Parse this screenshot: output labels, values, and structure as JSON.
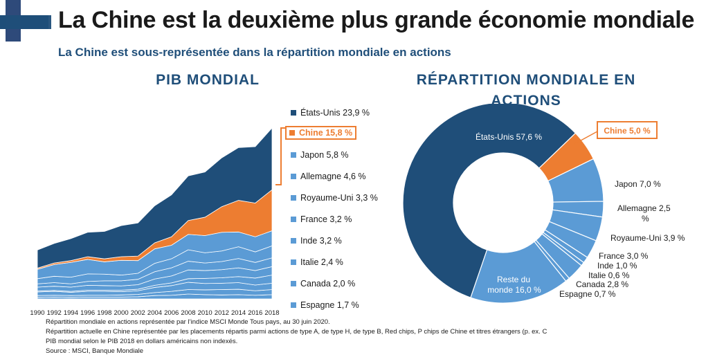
{
  "header": {
    "title": "La Chine est la deuxième plus grande économie mondiale",
    "subtitle": "La Chine est sous-représentée dans la répartition mondiale en actions"
  },
  "left_heading": "PIB MONDIAL",
  "right_heading_line1": "RÉPARTITION MONDIALE EN",
  "right_heading_line2": "ACTIONS",
  "colors": {
    "navy": "#1f4e79",
    "blue": "#2e75b6",
    "orange": "#ed7d31",
    "light_blue": "#5b9bd5",
    "title": "#1f4e79"
  },
  "chart_data": [
    {
      "type": "area",
      "stacked": true,
      "title": "PIB MONDIAL",
      "x": [
        "1990",
        "1992",
        "1994",
        "1996",
        "1998",
        "2000",
        "2002",
        "2004",
        "2006",
        "2008",
        "2010",
        "2012",
        "2014",
        "2016",
        "2018"
      ],
      "legend_position": "right",
      "series": [
        {
          "name": "États-Unis",
          "share_label": "23,9 %",
          "color": "#1f4e79",
          "values": [
            6.0,
            6.5,
            7.3,
            8.1,
            9.1,
            10.3,
            11.0,
            12.3,
            13.9,
            14.8,
            15.0,
            16.2,
            17.5,
            18.7,
            20.5
          ]
        },
        {
          "name": "Chine",
          "share_label": "15,8 %",
          "color": "#ed7d31",
          "values": [
            0.4,
            0.5,
            0.6,
            0.9,
            1.0,
            1.2,
            1.5,
            2.0,
            2.8,
            4.6,
            6.1,
            8.5,
            10.5,
            11.2,
            13.6
          ]
        },
        {
          "name": "Japon",
          "share_label": "5,8 %",
          "color": "#5b9bd5",
          "values": [
            3.1,
            3.9,
            4.9,
            4.8,
            4.1,
            4.9,
            4.2,
            4.8,
            4.5,
            5.1,
            5.7,
            6.2,
            4.9,
            5.0,
            5.0
          ]
        },
        {
          "name": "Allemagne",
          "share_label": "4,6 %",
          "color": "#5b9bd5",
          "values": [
            1.7,
            2.1,
            2.2,
            2.5,
            2.2,
            1.9,
            2.0,
            2.8,
            3.0,
            3.8,
            3.4,
            3.5,
            3.9,
            3.5,
            4.0
          ]
        },
        {
          "name": "Royaume-Uni",
          "share_label": "3,3 %",
          "color": "#5b9bd5",
          "values": [
            1.1,
            1.2,
            1.1,
            1.3,
            1.6,
            1.7,
            1.8,
            2.4,
            2.7,
            2.9,
            2.5,
            2.7,
            3.1,
            2.7,
            2.9
          ]
        },
        {
          "name": "France",
          "share_label": "3,2 %",
          "color": "#5b9bd5",
          "values": [
            1.3,
            1.4,
            1.4,
            1.6,
            1.5,
            1.4,
            1.5,
            2.1,
            2.3,
            2.9,
            2.6,
            2.7,
            2.9,
            2.5,
            2.8
          ]
        },
        {
          "name": "Inde",
          "share_label": "3,2 %",
          "color": "#5b9bd5",
          "values": [
            0.3,
            0.3,
            0.3,
            0.4,
            0.4,
            0.5,
            0.5,
            0.7,
            0.9,
            1.2,
            1.7,
            1.8,
            2.0,
            2.3,
            2.7
          ]
        },
        {
          "name": "Italie",
          "share_label": "2,4 %",
          "color": "#5b9bd5",
          "values": [
            1.2,
            1.3,
            1.1,
            1.3,
            1.3,
            1.1,
            1.2,
            1.7,
            1.9,
            2.4,
            2.1,
            2.1,
            2.2,
            1.9,
            2.1
          ]
        },
        {
          "name": "Canada",
          "share_label": "2,0 %",
          "color": "#5b9bd5",
          "values": [
            0.6,
            0.6,
            0.6,
            0.6,
            0.6,
            0.7,
            0.8,
            1.0,
            1.3,
            1.5,
            1.6,
            1.8,
            1.8,
            1.5,
            1.7
          ]
        },
        {
          "name": "Espagne",
          "share_label": "1,7 %",
          "color": "#5b9bd5",
          "values": [
            0.5,
            0.6,
            0.5,
            0.6,
            0.6,
            0.6,
            0.7,
            1.1,
            1.2,
            1.6,
            1.4,
            1.3,
            1.4,
            1.2,
            1.4
          ]
        }
      ]
    },
    {
      "type": "pie",
      "donut": true,
      "title": "RÉPARTITION MONDIALE EN ACTIONS",
      "slices": [
        {
          "label": "États-Unis",
          "value_label": "57,6 %",
          "value": 57.6,
          "color": "#1f4e79"
        },
        {
          "label": "Chine",
          "value_label": "5,0 %",
          "value": 5.0,
          "color": "#ed7d31"
        },
        {
          "label": "Japon",
          "value_label": "7,0 %",
          "value": 7.0,
          "color": "#5b9bd5"
        },
        {
          "label": "Allemagne",
          "value_label": "2,5 %",
          "value": 2.5,
          "color": "#5b9bd5"
        },
        {
          "label": "Royaume-Uni",
          "value_label": "3,9 %",
          "value": 3.9,
          "color": "#5b9bd5"
        },
        {
          "label": "France",
          "value_label": "3,0 %",
          "value": 3.0,
          "color": "#5b9bd5"
        },
        {
          "label": "Inde",
          "value_label": "1,0 %",
          "value": 1.0,
          "color": "#5b9bd5"
        },
        {
          "label": "Italie",
          "value_label": "0,6 %",
          "value": 0.6,
          "color": "#5b9bd5"
        },
        {
          "label": "Canada",
          "value_label": "2,8 %",
          "value": 2.8,
          "color": "#5b9bd5"
        },
        {
          "label": "Espagne",
          "value_label": "0,7 %",
          "value": 0.7,
          "color": "#5b9bd5"
        },
        {
          "label": "Reste du monde",
          "value_label": "16,0 %",
          "value": 16.0,
          "color": "#5b9bd5"
        }
      ]
    }
  ],
  "notes": [
    "Répartition mondiale en actions représentée par l’indice MSCI Monde Tous pays, au 30 juin 2020.",
    "Répartition actuelle en Chine représentée par les placements répartis parmi actions de type A, de type H, de type B, Red chips, P chips de Chine et titres étrangers (p. ex. C",
    "PIB mondial selon le PIB 2018 en dollars américains  non indexés.",
    "Source : MSCI, Banque Mondiale"
  ]
}
